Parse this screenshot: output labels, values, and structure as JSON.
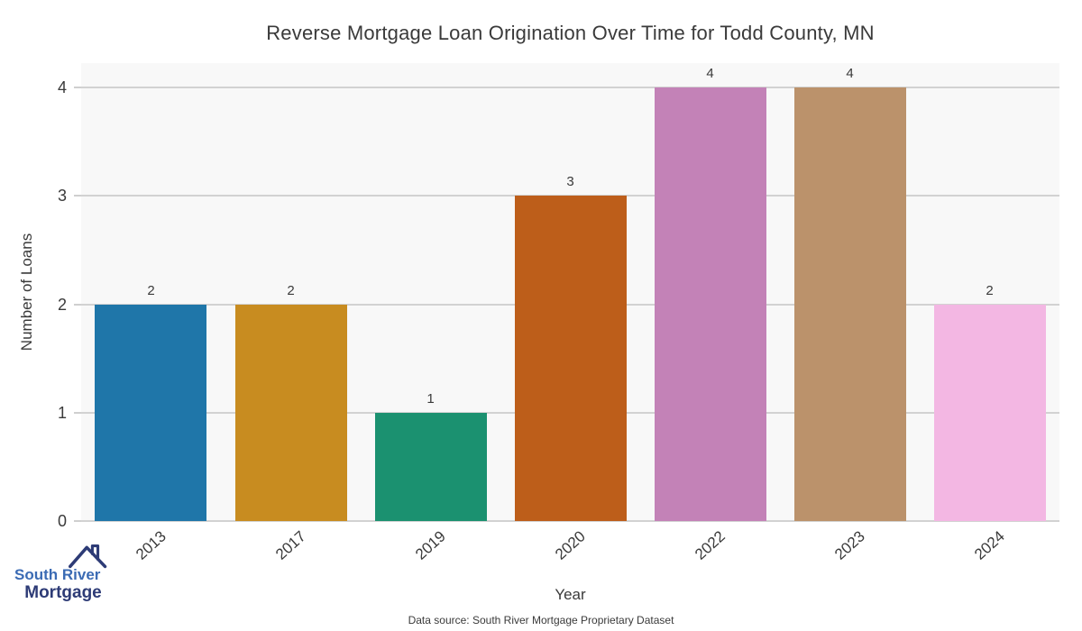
{
  "title": "Reverse Mortgage Loan Origination Over Time for Todd County, MN",
  "chart_data": {
    "type": "bar",
    "title": "Reverse Mortgage Loan Origination Over Time for Todd County, MN",
    "xlabel": "Year",
    "ylabel": "Number of Loans",
    "categories": [
      "2013",
      "2017",
      "2019",
      "2020",
      "2022",
      "2023",
      "2024"
    ],
    "values": [
      2,
      2,
      1,
      3,
      4,
      4,
      2
    ],
    "bar_colors": [
      "#1f76a9",
      "#c88c20",
      "#1b9170",
      "#bd5e1a",
      "#c382b7",
      "#bb926b",
      "#f3b7e3"
    ],
    "yticks": [
      0,
      1,
      2,
      3,
      4
    ],
    "ylim": [
      0,
      4.225
    ],
    "grid": true,
    "legend": "none",
    "plot_bg": "#f8f8f8",
    "grid_color": "#d2d2d2",
    "tick_color": "#cfcfcf",
    "bar_label_color": "#3a3a3a"
  },
  "logo": {
    "line1": "South River",
    "line2": "Mortgage",
    "color_line1": "#3b6bb4",
    "color_line2": "#2d3b76",
    "house_icon_color": "#2d3b76"
  },
  "footer": {
    "data_source": "Data source: South River Mortgage Proprietary Dataset"
  }
}
